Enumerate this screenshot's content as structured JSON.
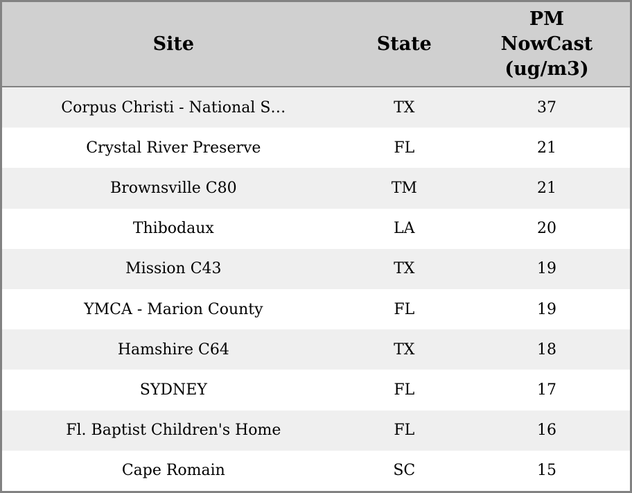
{
  "table": {
    "columns": {
      "site": {
        "label": "Site"
      },
      "state": {
        "label": "State"
      },
      "pm": {
        "label": "PM\nNowCast\n(ug/m3)"
      }
    },
    "rows": [
      {
        "site": "Corpus Christi - National S…",
        "state": "TX",
        "pm": "37"
      },
      {
        "site": "Crystal River Preserve",
        "state": "FL",
        "pm": "21"
      },
      {
        "site": "Brownsville C80",
        "state": "TM",
        "pm": "21"
      },
      {
        "site": "Thibodaux",
        "state": "LA",
        "pm": "20"
      },
      {
        "site": "Mission C43",
        "state": "TX",
        "pm": "19"
      },
      {
        "site": "YMCA - Marion County",
        "state": "FL",
        "pm": "19"
      },
      {
        "site": "Hamshire C64",
        "state": "TX",
        "pm": "18"
      },
      {
        "site": "SYDNEY",
        "state": "FL",
        "pm": "17"
      },
      {
        "site": "Fl. Baptist Children's Home",
        "state": "FL",
        "pm": "16"
      },
      {
        "site": "Cape Romain",
        "state": "SC",
        "pm": "15"
      }
    ],
    "colors": {
      "header_background": "#d0d0d0",
      "stripe_row_background": "#efefef",
      "plain_row_background": "#ffffff",
      "frame_border": "#828282",
      "text": "#000000"
    }
  }
}
